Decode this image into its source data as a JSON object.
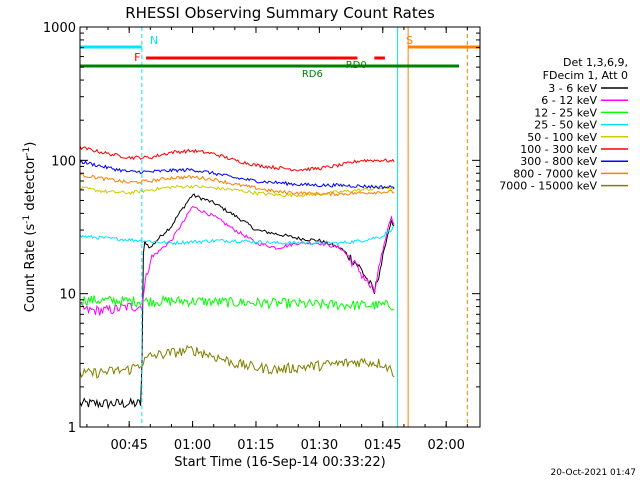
{
  "chart_data": {
    "type": "line",
    "title": "RHESSI Observing Summary Count Rates",
    "xlabel": "Start Time (16-Sep-14 00:33:22)",
    "ylabel_main": "Count Rate (s",
    "ylabel_sup1": "-1",
    "ylabel_mid": " detector",
    "ylabel_sup2": "-1",
    "ylabel_end": ")",
    "yscale": "log",
    "ylim": [
      1,
      1000
    ],
    "xlim": [
      "00:33:22",
      "02:08:00"
    ],
    "x_ticks": [
      "00:45",
      "01:00",
      "01:15",
      "01:30",
      "01:45",
      "02:00"
    ],
    "y_ticks": [
      "1",
      "10",
      "100",
      "1000"
    ],
    "legend_title_1": "Det 1,3,6,9,",
    "legend_title_2": "FDecim 1, Att 0",
    "legend_position": "right",
    "timestamp": "20-Oct-2021 01:47",
    "flags": [
      {
        "label": "N",
        "color": "#00e5ff",
        "start": "00:33:22",
        "end": "00:48:00",
        "level": "top"
      },
      {
        "label": "F",
        "color": "#ff0000",
        "start": "00:49:00",
        "end": "01:39:00",
        "level": "upper"
      },
      {
        "label": "S",
        "color": "#ff8000",
        "start": "01:51:00",
        "end": "02:08:00",
        "level": "top"
      },
      {
        "label": "RD6",
        "color": "#008000",
        "start": "01:32:00",
        "end": "01:32:00",
        "level": "marker"
      },
      {
        "label": "RD0",
        "color": "#008000",
        "start": "01:36:00",
        "end": "01:36:00",
        "level": "marker"
      }
    ],
    "vertical_lines": [
      {
        "time": "00:48:00",
        "color": "#00e5ff",
        "style": "dashed"
      },
      {
        "time": "01:48:30",
        "color": "#00e5ff",
        "style": "solid"
      },
      {
        "time": "01:51:00",
        "color": "#ff8000",
        "style": "solid"
      },
      {
        "time": "02:05:00",
        "color": "#ff8000",
        "style": "dashed"
      }
    ],
    "series": [
      {
        "name": "3 - 6 keV",
        "color": "#000000",
        "x": [
          "00:33:22",
          "00:48:00",
          "00:48:30",
          "00:50",
          "00:55",
          "00:58",
          "01:00",
          "01:02",
          "01:05",
          "01:08",
          "01:12",
          "01:15",
          "01:20",
          "01:25",
          "01:30",
          "01:35",
          "01:40",
          "01:43",
          "01:45",
          "01:47",
          "01:48"
        ],
        "y": [
          1.5,
          1.5,
          25,
          22,
          32,
          45,
          55,
          52,
          48,
          42,
          35,
          30,
          28,
          26,
          25,
          22,
          15,
          10,
          18,
          35,
          30
        ]
      },
      {
        "name": "6 - 12 keV",
        "color": "#ff00ff",
        "x": [
          "00:33:22",
          "00:35",
          "00:40",
          "00:45",
          "00:48",
          "00:50",
          "00:55",
          "00:58",
          "01:00",
          "01:02",
          "01:05",
          "01:08",
          "01:10",
          "01:15",
          "01:20",
          "01:25",
          "01:30",
          "01:35",
          "01:40",
          "01:43",
          "01:45",
          "01:47",
          "01:48"
        ],
        "y": [
          8,
          7.5,
          7.5,
          8,
          8,
          18,
          25,
          35,
          45,
          42,
          38,
          33,
          30,
          24,
          22,
          24,
          24,
          22,
          14,
          10,
          20,
          38,
          30
        ]
      },
      {
        "name": "12 - 25 keV",
        "color": "#00ff00",
        "x": [
          "00:33:22",
          "00:45",
          "00:50",
          "01:00",
          "01:10",
          "01:20",
          "01:30",
          "01:40",
          "01:48"
        ],
        "y": [
          9,
          8.8,
          8.8,
          8.8,
          8.6,
          8.5,
          8.3,
          8.2,
          8.2
        ]
      },
      {
        "name": "25 - 50 keV",
        "color": "#00e5ff",
        "x": [
          "00:33:22",
          "00:40",
          "00:48",
          "00:55",
          "01:00",
          "01:05",
          "01:10",
          "01:15",
          "01:20",
          "01:25",
          "01:30",
          "01:35",
          "01:40",
          "01:45",
          "01:48"
        ],
        "y": [
          27,
          26,
          25,
          24,
          24.5,
          25,
          25,
          24.5,
          24,
          24,
          24,
          24,
          25,
          27,
          32
        ]
      },
      {
        "name": "50 - 100 keV",
        "color": "#cccc00",
        "x": [
          "00:33:22",
          "00:40",
          "00:45",
          "00:50",
          "00:55",
          "01:00",
          "01:05",
          "01:10",
          "01:15",
          "01:20",
          "01:25",
          "01:30",
          "01:35",
          "01:40",
          "01:45",
          "01:48"
        ],
        "y": [
          62,
          58,
          57,
          60,
          63,
          64,
          62,
          60,
          57,
          55,
          55,
          56,
          58,
          60,
          62,
          62
        ]
      },
      {
        "name": "100 - 300 keV",
        "color": "#ff0000",
        "x": [
          "00:33:22",
          "00:40",
          "00:45",
          "00:50",
          "00:55",
          "01:00",
          "01:05",
          "01:10",
          "01:15",
          "01:20",
          "01:25",
          "01:30",
          "01:35",
          "01:40",
          "01:45",
          "01:48"
        ],
        "y": [
          125,
          112,
          105,
          105,
          115,
          118,
          112,
          100,
          92,
          88,
          85,
          87,
          92,
          100,
          100,
          98
        ]
      },
      {
        "name": "300 - 800 keV",
        "color": "#0000ff",
        "x": [
          "00:33:22",
          "00:40",
          "00:45",
          "00:50",
          "00:55",
          "01:00",
          "01:05",
          "01:10",
          "01:15",
          "01:20",
          "01:25",
          "01:30",
          "01:35",
          "01:40",
          "01:45",
          "01:48"
        ],
        "y": [
          98,
          88,
          82,
          82,
          84,
          85,
          80,
          74,
          70,
          68,
          66,
          65,
          65,
          64,
          63,
          63
        ]
      },
      {
        "name": "800 - 7000 keV",
        "color": "#ff8000",
        "x": [
          "00:33:22",
          "00:40",
          "00:45",
          "00:50",
          "00:55",
          "01:00",
          "01:05",
          "01:10",
          "01:15",
          "01:20",
          "01:25",
          "01:30",
          "01:35",
          "01:40",
          "01:45",
          "01:48"
        ],
        "y": [
          78,
          72,
          68,
          70,
          74,
          75,
          72,
          66,
          62,
          58,
          57,
          56,
          56,
          57,
          58,
          58
        ]
      },
      {
        "name": "7000 - 15000 keV",
        "color": "#808000",
        "x": [
          "00:33:22",
          "00:40",
          "00:45",
          "00:48",
          "00:50",
          "00:55",
          "01:00",
          "01:05",
          "01:10",
          "01:15",
          "01:20",
          "01:25",
          "01:30",
          "01:35",
          "01:40",
          "01:45",
          "01:48"
        ],
        "y": [
          2.5,
          2.6,
          2.7,
          3.0,
          3.4,
          3.6,
          3.8,
          3.4,
          3.0,
          2.8,
          2.7,
          2.8,
          2.9,
          3.0,
          3.1,
          3.0,
          2.5
        ]
      }
    ]
  }
}
